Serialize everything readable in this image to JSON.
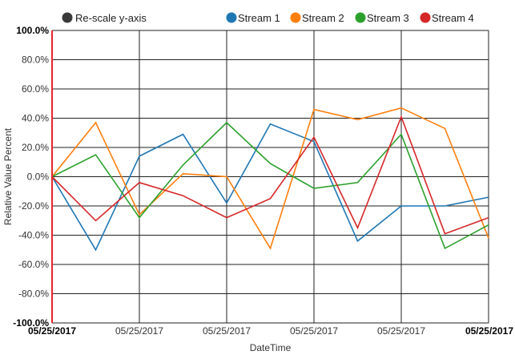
{
  "chart_data": {
    "type": "line",
    "xlabel": "DateTime",
    "ylabel": "Relative Value Percent",
    "ylim": [
      -100,
      100
    ],
    "y_ticks": [
      "100.0%",
      "80.0%",
      "60.0%",
      "40.0%",
      "20.0%",
      "0.0%",
      "-20.0%",
      "-40.0%",
      "-60.0%",
      "-80.0%",
      "-100.0%"
    ],
    "y_tick_values": [
      100,
      80,
      60,
      40,
      20,
      0,
      -20,
      -40,
      -60,
      -80,
      -100
    ],
    "x_points": 11,
    "x_ticks": [
      {
        "index": 0,
        "label": "05/25/2017",
        "bold": true
      },
      {
        "index": 2,
        "label": "05/25/2017",
        "bold": false
      },
      {
        "index": 4,
        "label": "05/25/2017",
        "bold": false
      },
      {
        "index": 6,
        "label": "05/25/2017",
        "bold": false
      },
      {
        "index": 8,
        "label": "05/25/2017",
        "bold": false
      },
      {
        "index": 10,
        "label": "05/25/2017",
        "bold": true
      }
    ],
    "rescale_label": "Re-scale y-axis",
    "series": [
      {
        "name": "Stream 1",
        "color": "#1f77b4",
        "values": [
          0,
          -50,
          14,
          29,
          -18,
          36,
          24,
          -44,
          -20,
          -20,
          -14
        ]
      },
      {
        "name": "Stream 2",
        "color": "#ff7f0e",
        "values": [
          0,
          37,
          -26,
          2,
          0,
          -49,
          46,
          39,
          47,
          33,
          -42
        ]
      },
      {
        "name": "Stream 3",
        "color": "#2ca02c",
        "values": [
          0,
          15,
          -28,
          8,
          37,
          9,
          -8,
          -4,
          29,
          -49,
          -33
        ]
      },
      {
        "name": "Stream 4",
        "color": "#d62728",
        "values": [
          0,
          -30,
          -4,
          -13,
          -28,
          -15,
          27,
          -35,
          41,
          -39,
          -28
        ]
      }
    ]
  }
}
